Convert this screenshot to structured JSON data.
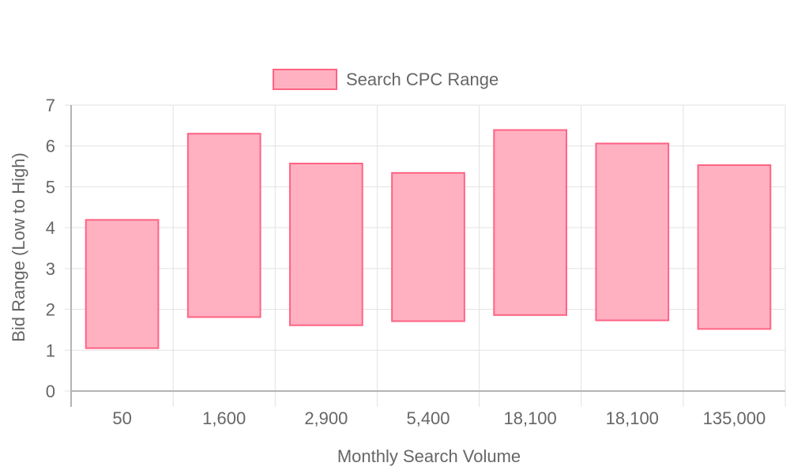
{
  "colors": {
    "bar_fill": "#ffb1c1",
    "bar_border": "#ff6384",
    "grid": "#e2e2e2",
    "axis": "#b4b4b4",
    "text": "#666666"
  },
  "chart_data": {
    "type": "bar",
    "subtype": "floating-range",
    "title": "",
    "xlabel": "Monthly Search Volume",
    "ylabel": "Bid Range (Low to High)",
    "ylim": [
      0,
      7
    ],
    "yticks": [
      "0",
      "1",
      "2",
      "3",
      "4",
      "5",
      "6",
      "7"
    ],
    "grid": true,
    "legend": {
      "position": "top-center",
      "entries": [
        "Search CPC Range"
      ]
    },
    "categories": [
      "50",
      "1,600",
      "2,900",
      "5,400",
      "18,100",
      "18,100",
      "135,000"
    ],
    "series": [
      {
        "name": "Search CPC Range",
        "ranges": [
          [
            1.05,
            4.19
          ],
          [
            1.81,
            6.3
          ],
          [
            1.61,
            5.57
          ],
          [
            1.71,
            5.34
          ],
          [
            1.86,
            6.39
          ],
          [
            1.73,
            6.06
          ],
          [
            1.52,
            5.53
          ]
        ]
      }
    ]
  }
}
